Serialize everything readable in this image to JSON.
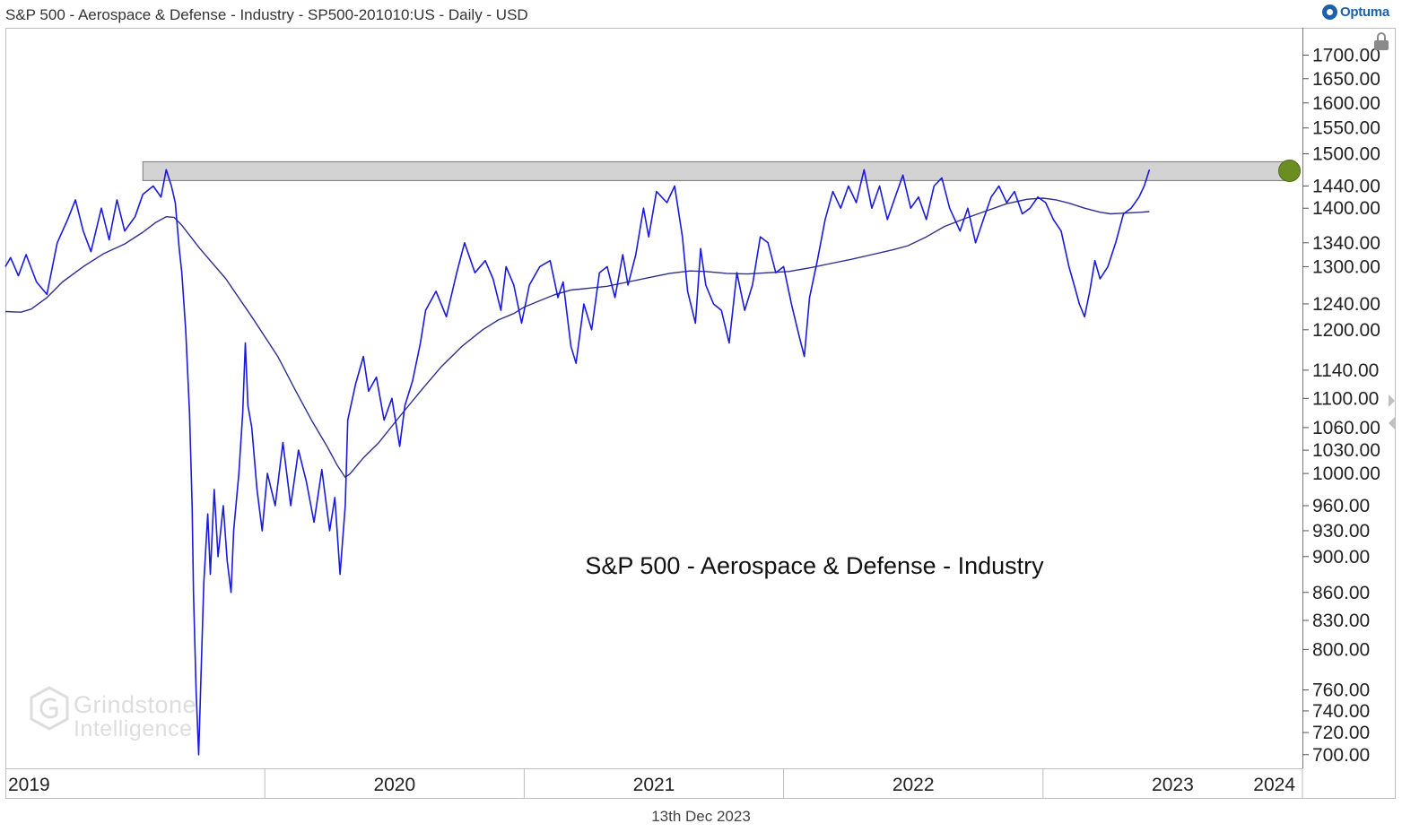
{
  "header": {
    "title": "S&P 500 - Aerospace & Defense - Industry - SP500-201010:US - Daily - USD",
    "brand": "Optuma"
  },
  "footer": {
    "date": "13th Dec 2023"
  },
  "watermark": {
    "line1": "Grindstone",
    "line2": "Intelligence"
  },
  "icons": {
    "lock": "lock-icon",
    "scroll_right": "chevron-right-icon",
    "scroll_left": "chevron-left-icon",
    "brand": "optuma-logo-icon"
  },
  "colors": {
    "price": "#1a1adb",
    "moving_average": "#2e2e8f",
    "resistance_band": "#d3d3d3",
    "highlight_dot": "#6b8e23",
    "grid": "#888888"
  },
  "chart_data": {
    "type": "line",
    "title": "S&P 500 - Aerospace & Defense - Industry",
    "xlabel": "",
    "ylabel": "",
    "y_scale": "log",
    "ylim": [
      688,
      1760
    ],
    "xlim": [
      2019.0,
      2024.0
    ],
    "x_ticks": [
      "2019",
      "2020",
      "2021",
      "2022",
      "2023",
      "2024"
    ],
    "y_ticks": [
      700,
      720,
      740,
      760,
      800,
      830,
      860,
      900,
      930,
      960,
      1000,
      1030,
      1060,
      1100,
      1140,
      1200,
      1240,
      1300,
      1340,
      1400,
      1440,
      1500,
      1550,
      1600,
      1650,
      1700
    ],
    "y_tick_format": "2dp",
    "resistance_band": {
      "low": 1450,
      "high": 1485,
      "from": 2019.53,
      "to": 2023.96
    },
    "highlight_point": {
      "x": 2023.95,
      "y": 1468
    },
    "series": [
      {
        "name": "Price",
        "points": [
          [
            2019.0,
            1300
          ],
          [
            2019.02,
            1315
          ],
          [
            2019.05,
            1285
          ],
          [
            2019.08,
            1320
          ],
          [
            2019.12,
            1275
          ],
          [
            2019.16,
            1255
          ],
          [
            2019.2,
            1340
          ],
          [
            2019.24,
            1380
          ],
          [
            2019.27,
            1415
          ],
          [
            2019.3,
            1360
          ],
          [
            2019.33,
            1325
          ],
          [
            2019.37,
            1400
          ],
          [
            2019.4,
            1345
          ],
          [
            2019.43,
            1415
          ],
          [
            2019.46,
            1360
          ],
          [
            2019.5,
            1385
          ],
          [
            2019.53,
            1425
          ],
          [
            2019.57,
            1440
          ],
          [
            2019.6,
            1420
          ],
          [
            2019.62,
            1470
          ],
          [
            2019.64,
            1440
          ],
          [
            2019.655,
            1410
          ],
          [
            2019.67,
            1330
          ],
          [
            2019.68,
            1290
          ],
          [
            2019.695,
            1200
          ],
          [
            2019.71,
            1080
          ],
          [
            2019.72,
            960
          ],
          [
            2019.725,
            860
          ],
          [
            2019.735,
            760
          ],
          [
            2019.745,
            700
          ],
          [
            2019.755,
            780
          ],
          [
            2019.765,
            870
          ],
          [
            2019.78,
            950
          ],
          [
            2019.79,
            880
          ],
          [
            2019.805,
            980
          ],
          [
            2019.82,
            900
          ],
          [
            2019.84,
            960
          ],
          [
            2019.855,
            895
          ],
          [
            2019.87,
            860
          ],
          [
            2019.88,
            930
          ],
          [
            2019.9,
            1000
          ],
          [
            2019.915,
            1080
          ],
          [
            2019.925,
            1180
          ],
          [
            2019.935,
            1090
          ],
          [
            2019.95,
            1060
          ],
          [
            2019.97,
            980
          ],
          [
            2019.99,
            930
          ],
          [
            2020.01,
            1000
          ],
          [
            2020.04,
            960
          ],
          [
            2020.07,
            1040
          ],
          [
            2020.1,
            960
          ],
          [
            2020.13,
            1030
          ],
          [
            2020.16,
            990
          ],
          [
            2020.19,
            940
          ],
          [
            2020.22,
            1005
          ],
          [
            2020.25,
            930
          ],
          [
            2020.27,
            970
          ],
          [
            2020.29,
            880
          ],
          [
            2020.31,
            960
          ],
          [
            2020.32,
            1070
          ],
          [
            2020.35,
            1120
          ],
          [
            2020.38,
            1160
          ],
          [
            2020.4,
            1110
          ],
          [
            2020.43,
            1130
          ],
          [
            2020.46,
            1070
          ],
          [
            2020.49,
            1100
          ],
          [
            2020.52,
            1035
          ],
          [
            2020.54,
            1090
          ],
          [
            2020.57,
            1125
          ],
          [
            2020.6,
            1180
          ],
          [
            2020.62,
            1230
          ],
          [
            2020.66,
            1260
          ],
          [
            2020.7,
            1220
          ],
          [
            2020.74,
            1290
          ],
          [
            2020.77,
            1340
          ],
          [
            2020.81,
            1290
          ],
          [
            2020.85,
            1310
          ],
          [
            2020.88,
            1280
          ],
          [
            2020.91,
            1230
          ],
          [
            2020.93,
            1300
          ],
          [
            2020.96,
            1270
          ],
          [
            2020.99,
            1210
          ],
          [
            2021.02,
            1270
          ],
          [
            2021.06,
            1300
          ],
          [
            2021.1,
            1310
          ],
          [
            2021.13,
            1250
          ],
          [
            2021.15,
            1275
          ],
          [
            2021.18,
            1175
          ],
          [
            2021.2,
            1150
          ],
          [
            2021.23,
            1240
          ],
          [
            2021.26,
            1200
          ],
          [
            2021.29,
            1290
          ],
          [
            2021.32,
            1300
          ],
          [
            2021.35,
            1250
          ],
          [
            2021.38,
            1320
          ],
          [
            2021.4,
            1270
          ],
          [
            2021.43,
            1320
          ],
          [
            2021.46,
            1400
          ],
          [
            2021.48,
            1350
          ],
          [
            2021.51,
            1430
          ],
          [
            2021.55,
            1410
          ],
          [
            2021.58,
            1440
          ],
          [
            2021.61,
            1350
          ],
          [
            2021.63,
            1260
          ],
          [
            2021.66,
            1210
          ],
          [
            2021.68,
            1330
          ],
          [
            2021.7,
            1270
          ],
          [
            2021.73,
            1240
          ],
          [
            2021.76,
            1230
          ],
          [
            2021.79,
            1180
          ],
          [
            2021.82,
            1290
          ],
          [
            2021.85,
            1230
          ],
          [
            2021.88,
            1270
          ],
          [
            2021.91,
            1350
          ],
          [
            2021.94,
            1340
          ],
          [
            2021.97,
            1290
          ],
          [
            2022.0,
            1300
          ],
          [
            2022.03,
            1240
          ],
          [
            2022.06,
            1190
          ],
          [
            2022.08,
            1160
          ],
          [
            2022.1,
            1250
          ],
          [
            2022.13,
            1310
          ],
          [
            2022.16,
            1380
          ],
          [
            2022.19,
            1430
          ],
          [
            2022.22,
            1400
          ],
          [
            2022.25,
            1440
          ],
          [
            2022.28,
            1410
          ],
          [
            2022.31,
            1470
          ],
          [
            2022.34,
            1400
          ],
          [
            2022.37,
            1440
          ],
          [
            2022.4,
            1380
          ],
          [
            2022.43,
            1420
          ],
          [
            2022.46,
            1460
          ],
          [
            2022.49,
            1400
          ],
          [
            2022.52,
            1420
          ],
          [
            2022.55,
            1380
          ],
          [
            2022.58,
            1440
          ],
          [
            2022.61,
            1455
          ],
          [
            2022.64,
            1400
          ],
          [
            2022.68,
            1360
          ],
          [
            2022.71,
            1400
          ],
          [
            2022.74,
            1340
          ],
          [
            2022.77,
            1380
          ],
          [
            2022.8,
            1420
          ],
          [
            2022.83,
            1440
          ],
          [
            2022.86,
            1410
          ],
          [
            2022.89,
            1430
          ],
          [
            2022.92,
            1390
          ],
          [
            2022.95,
            1400
          ],
          [
            2022.98,
            1420
          ],
          [
            2023.01,
            1410
          ],
          [
            2023.04,
            1380
          ],
          [
            2023.07,
            1360
          ],
          [
            2023.1,
            1300
          ],
          [
            2023.12,
            1270
          ],
          [
            2023.14,
            1240
          ],
          [
            2023.16,
            1220
          ],
          [
            2023.18,
            1260
          ],
          [
            2023.2,
            1310
          ],
          [
            2023.22,
            1280
          ],
          [
            2023.25,
            1300
          ],
          [
            2023.28,
            1340
          ],
          [
            2023.31,
            1390
          ],
          [
            2023.34,
            1400
          ],
          [
            2023.37,
            1420
          ],
          [
            2023.39,
            1440
          ],
          [
            2023.41,
            1470
          ]
        ]
      },
      {
        "name": "Moving Average",
        "points": [
          [
            2019.0,
            1228
          ],
          [
            2019.06,
            1227
          ],
          [
            2019.1,
            1232
          ],
          [
            2019.16,
            1250
          ],
          [
            2019.22,
            1275
          ],
          [
            2019.3,
            1300
          ],
          [
            2019.38,
            1322
          ],
          [
            2019.46,
            1338
          ],
          [
            2019.53,
            1358
          ],
          [
            2019.58,
            1375
          ],
          [
            2019.62,
            1385
          ],
          [
            2019.65,
            1384
          ],
          [
            2019.68,
            1370
          ],
          [
            2019.75,
            1330
          ],
          [
            2019.85,
            1280
          ],
          [
            2019.95,
            1220
          ],
          [
            2020.05,
            1160
          ],
          [
            2020.12,
            1110
          ],
          [
            2020.18,
            1070
          ],
          [
            2020.24,
            1035
          ],
          [
            2020.28,
            1010
          ],
          [
            2020.31,
            995
          ],
          [
            2020.33,
            1000
          ],
          [
            2020.38,
            1020
          ],
          [
            2020.44,
            1040
          ],
          [
            2020.52,
            1075
          ],
          [
            2020.6,
            1110
          ],
          [
            2020.68,
            1145
          ],
          [
            2020.76,
            1175
          ],
          [
            2020.84,
            1200
          ],
          [
            2020.9,
            1215
          ],
          [
            2020.96,
            1225
          ],
          [
            2021.0,
            1235
          ],
          [
            2021.06,
            1245
          ],
          [
            2021.12,
            1255
          ],
          [
            2021.18,
            1262
          ],
          [
            2021.25,
            1265
          ],
          [
            2021.32,
            1268
          ],
          [
            2021.4,
            1275
          ],
          [
            2021.48,
            1282
          ],
          [
            2021.56,
            1289
          ],
          [
            2021.64,
            1293
          ],
          [
            2021.7,
            1292
          ],
          [
            2021.78,
            1289
          ],
          [
            2021.86,
            1288
          ],
          [
            2021.94,
            1290
          ],
          [
            2022.02,
            1292
          ],
          [
            2022.1,
            1298
          ],
          [
            2022.18,
            1305
          ],
          [
            2022.26,
            1312
          ],
          [
            2022.34,
            1320
          ],
          [
            2022.42,
            1328
          ],
          [
            2022.48,
            1335
          ],
          [
            2022.55,
            1350
          ],
          [
            2022.62,
            1368
          ],
          [
            2022.7,
            1382
          ],
          [
            2022.78,
            1395
          ],
          [
            2022.86,
            1408
          ],
          [
            2022.94,
            1416
          ],
          [
            2023.0,
            1418
          ],
          [
            2023.05,
            1415
          ],
          [
            2023.1,
            1409
          ],
          [
            2023.16,
            1400
          ],
          [
            2023.22,
            1393
          ],
          [
            2023.26,
            1390
          ],
          [
            2023.3,
            1391
          ],
          [
            2023.34,
            1392
          ],
          [
            2023.38,
            1393
          ],
          [
            2023.41,
            1394
          ]
        ]
      }
    ]
  }
}
